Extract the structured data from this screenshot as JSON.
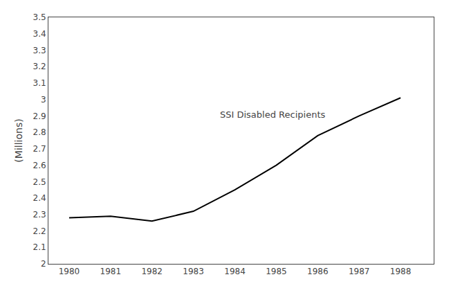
{
  "chart_data": {
    "type": "line",
    "x": [
      1980,
      1981,
      1982,
      1983,
      1984,
      1985,
      1986,
      1987,
      1988
    ],
    "values": [
      2.28,
      2.29,
      2.26,
      2.32,
      2.45,
      2.6,
      2.78,
      2.9,
      3.01
    ],
    "color": "#000000",
    "ylabel": "(Millions)",
    "xlim": [
      1979.5,
      1988.8
    ],
    "xticks": [
      1980,
      1981,
      1982,
      1983,
      1984,
      1985,
      1986,
      1987,
      1988
    ],
    "ylim": [
      2.0,
      3.5
    ],
    "yticks": [
      2,
      2.1,
      2.2,
      2.3,
      2.4,
      2.5,
      2.6,
      2.7,
      2.8,
      2.9,
      3,
      3.1,
      3.2,
      3.3,
      3.4,
      3.5
    ],
    "annotations": [
      {
        "text": "SSI Disabled Recipients",
        "x": 1983.6,
        "y": 2.87
      }
    ],
    "grid": false
  }
}
